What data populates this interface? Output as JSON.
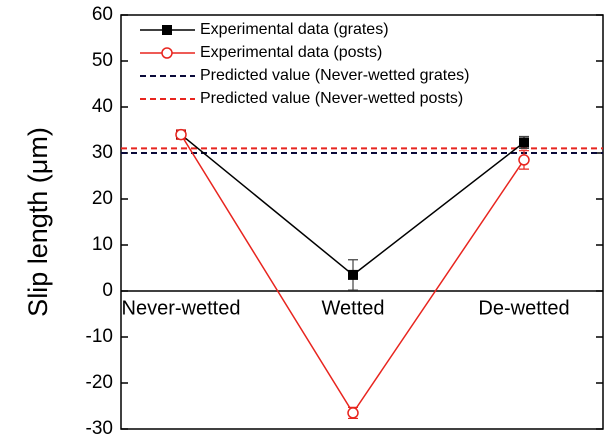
{
  "chart_data": {
    "type": "line",
    "y_label": "Slip length (μm)",
    "categories": [
      "Never-wetted",
      "Wetted",
      "De-wetted"
    ],
    "series": [
      {
        "name": "Experimental data (grates)",
        "color": "#000000",
        "marker": "square",
        "values": [
          34,
          3.5,
          32.3
        ],
        "errors": [
          1,
          3.3,
          1.3
        ]
      },
      {
        "name": "Experimental data (posts)",
        "color": "#e8251f",
        "marker": "open-circle",
        "values": [
          34,
          -26.5,
          28.5
        ],
        "errors": [
          1,
          1.2,
          2
        ]
      }
    ],
    "reference_lines": [
      {
        "name": "Predicted value (Never-wetted grates)",
        "color": "#0a0a3a",
        "value": 30
      },
      {
        "name": "Predicted value (Never-wetted posts)",
        "color": "#e8251f",
        "value": 31
      }
    ],
    "ylim": [
      -30,
      60
    ],
    "yticks": [
      -30,
      -20,
      -10,
      0,
      10,
      20,
      30,
      40,
      50,
      60
    ],
    "legend": "upper-left"
  }
}
